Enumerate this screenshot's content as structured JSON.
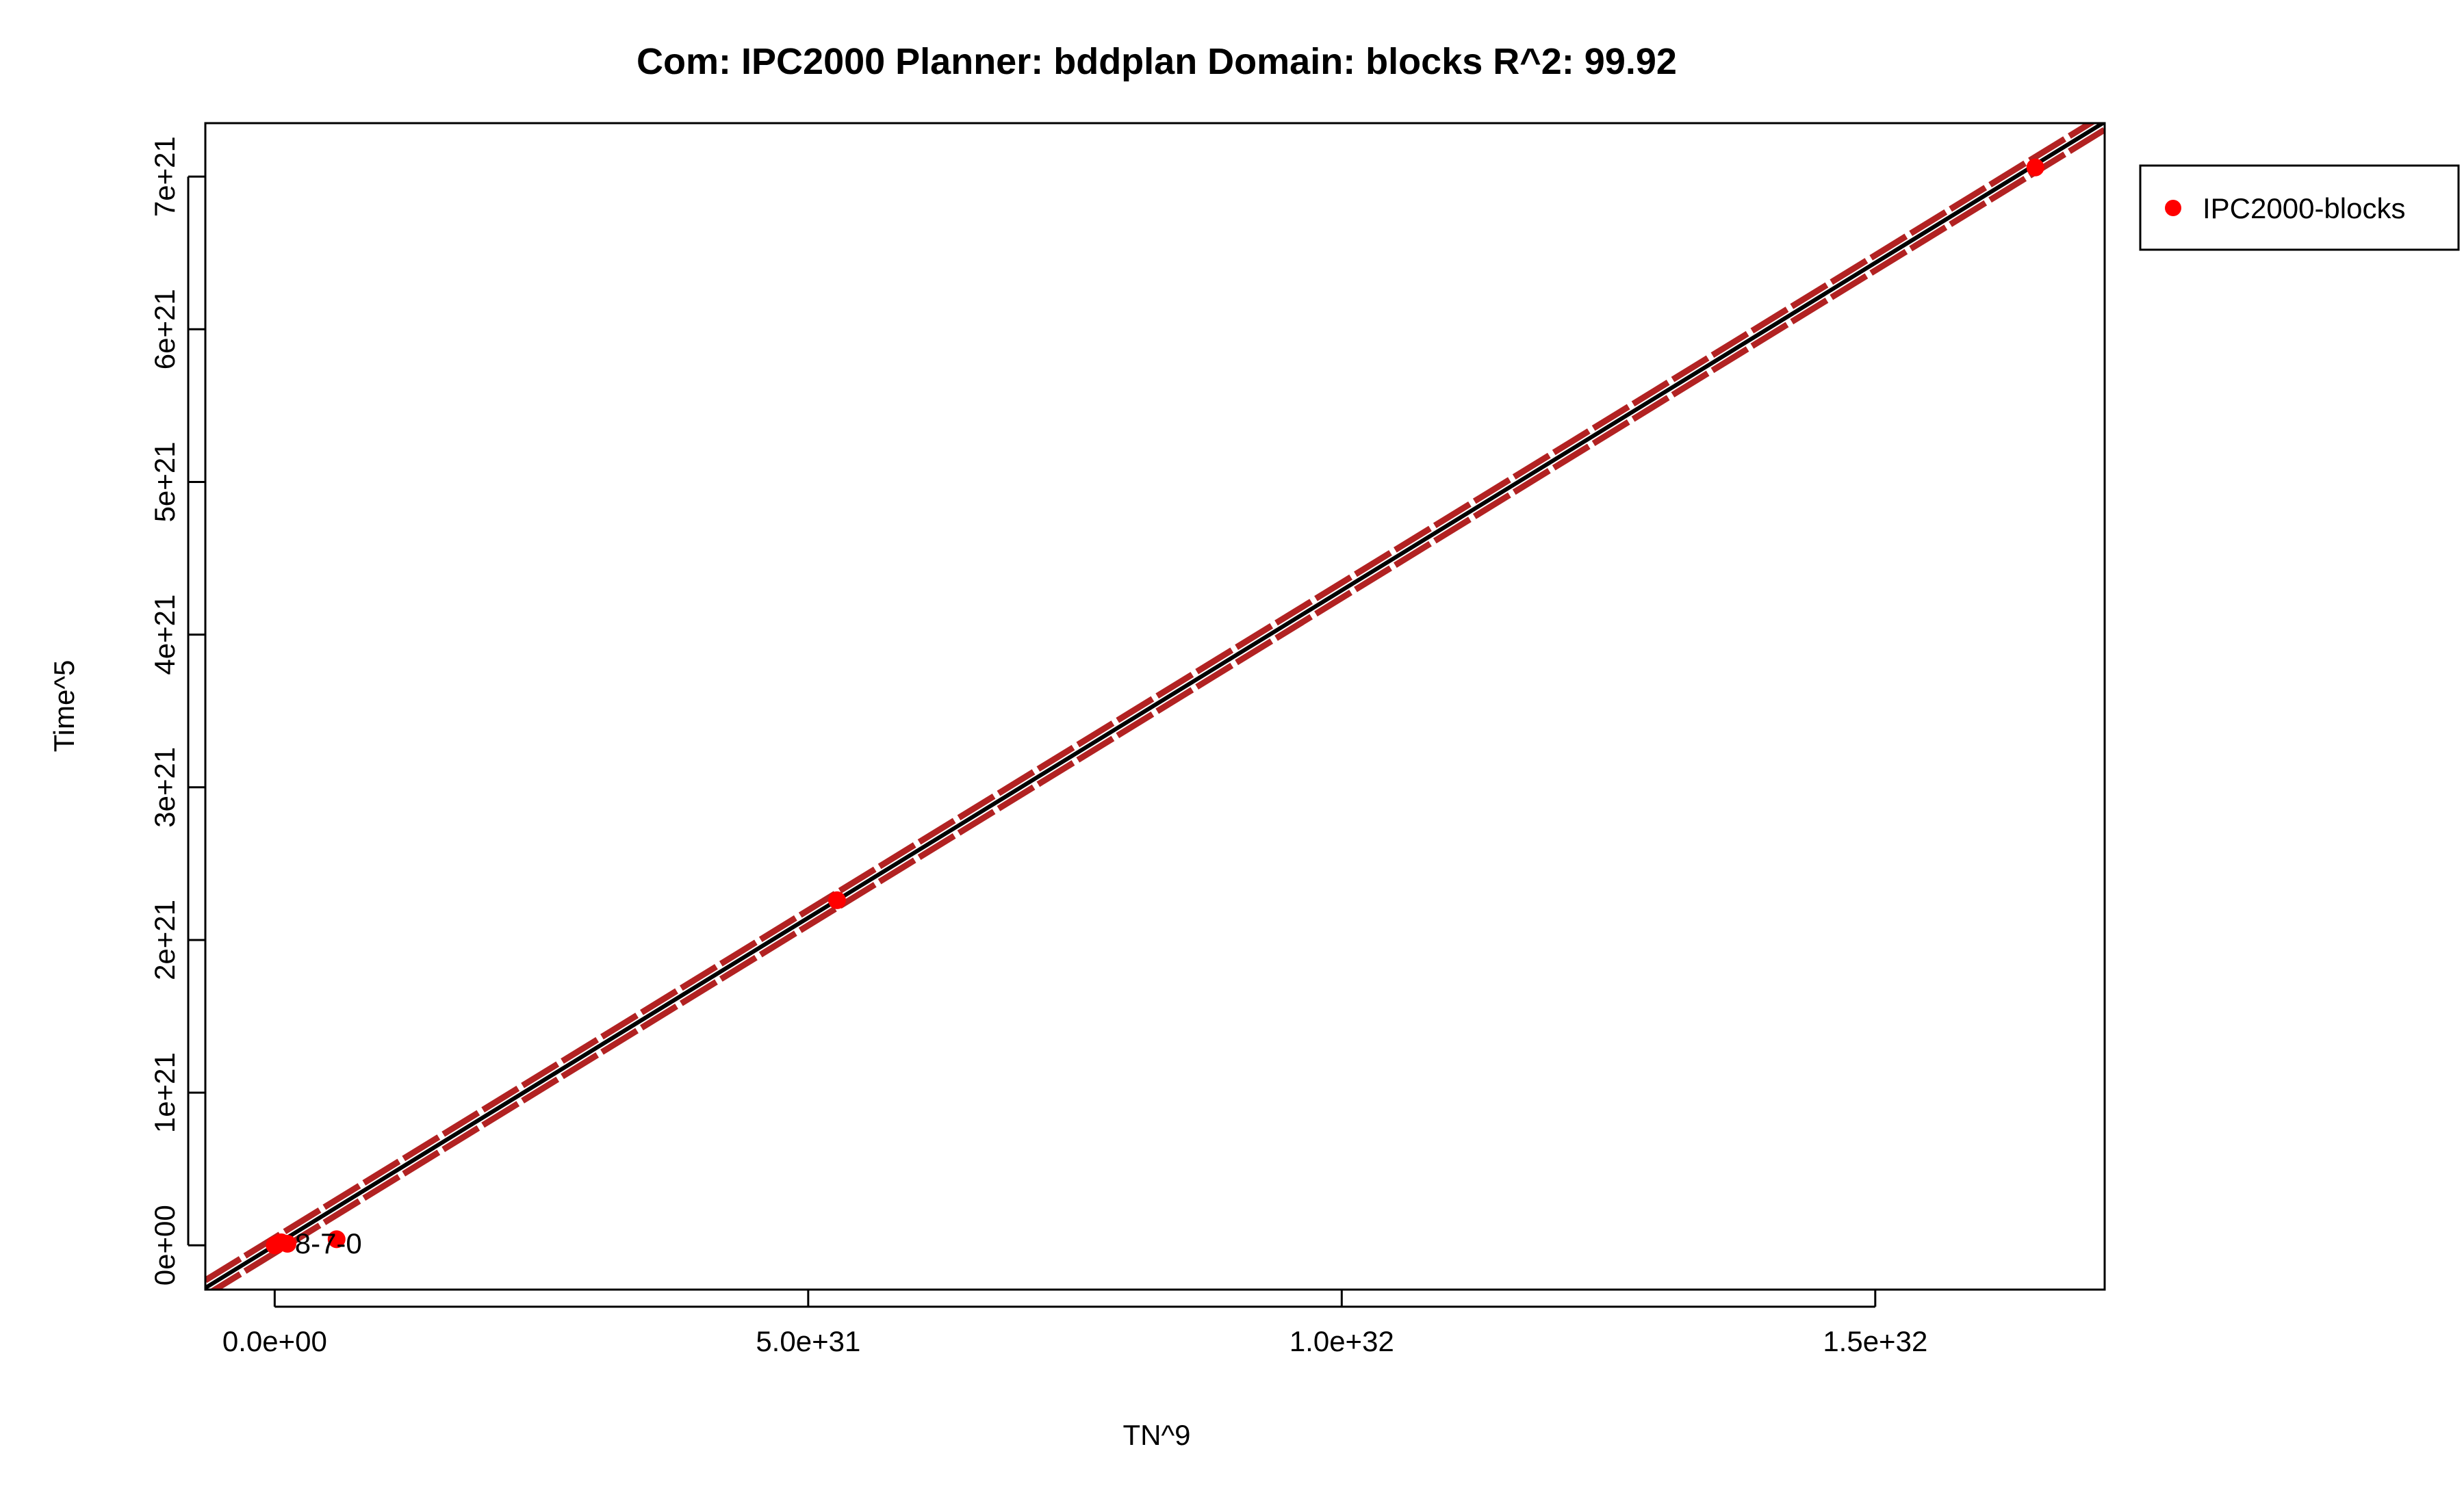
{
  "chart_data": {
    "type": "scatter",
    "title": "Com: IPC2000 Planner: bddplan Domain: blocks R^2: 99.92",
    "xlabel": "TN^9",
    "ylabel": "Time^5",
    "xlim": [
      -6.5e+30,
      1.715e+32
    ],
    "ylim": [
      -2.9e+20,
      7.35e+21
    ],
    "x_ticks": [
      0,
      5e+31,
      1e+32,
      1.5e+32
    ],
    "x_tick_labels": [
      "0.0e+00",
      "5.0e+31",
      "1.0e+32",
      "1.5e+32"
    ],
    "y_ticks": [
      0,
      1e+21,
      2e+21,
      3e+21,
      4e+21,
      5e+21,
      6e+21,
      7e+21
    ],
    "y_tick_labels": [
      "0e+00",
      "1e+21",
      "2e+21",
      "3e+21",
      "4e+21",
      "5e+21",
      "6e+21",
      "7e+21"
    ],
    "grid": false,
    "legend_position": "outside-top-right",
    "series": [
      {
        "name": "IPC2000-blocks",
        "color": "#ff0000",
        "points": [
          {
            "x": 0,
            "y": 0
          },
          {
            "x": 2e+29,
            "y": 5e+18
          },
          {
            "x": 6e+29,
            "y": 2e+19
          },
          {
            "x": 1.2e+30,
            "y": 1e+19
          },
          {
            "x": 5.8e+30,
            "y": 4e+19
          },
          {
            "x": 5.27e+31,
            "y": 2.26e+21
          },
          {
            "x": 1.65e+32,
            "y": 7.06e+21
          }
        ]
      }
    ],
    "fit_line": {
      "slope": 4.29e-11,
      "intercept": 0,
      "color": "#000000"
    },
    "confidence_band": {
      "offset": 5e+19,
      "color": "#b22222"
    },
    "annotations": [
      {
        "text": "8-7-0",
        "x": 1.5e+30,
        "y": 1e+19
      }
    ]
  }
}
